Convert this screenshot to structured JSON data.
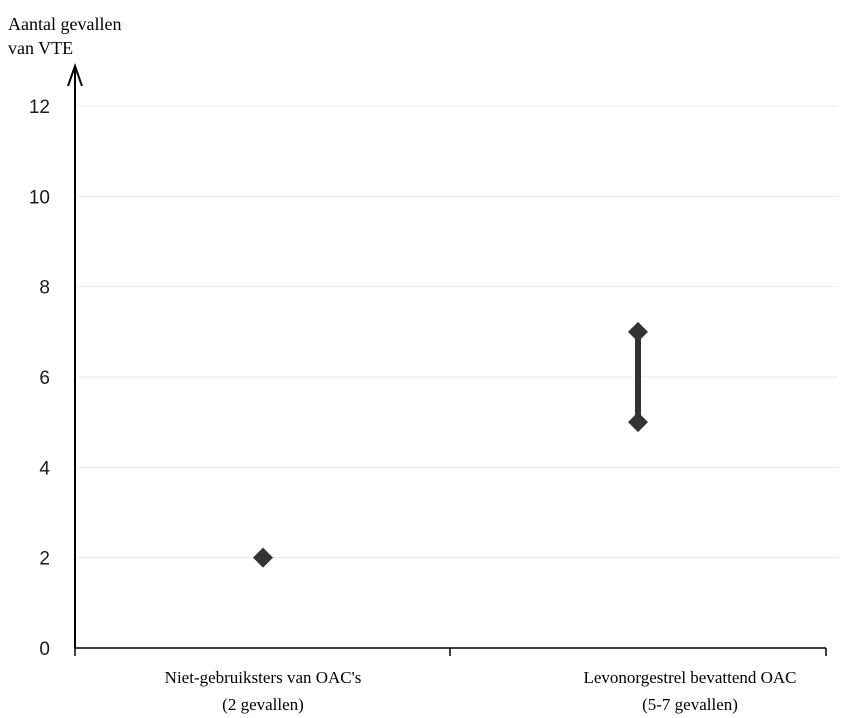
{
  "chart_data": {
    "type": "scatter",
    "ylabel_lines": [
      "Aantal gevallen",
      "van VTE"
    ],
    "categories": [
      {
        "lines": [
          "Niet-gebruiksters van OAC's",
          "(2 gevallen)"
        ]
      },
      {
        "lines": [
          "Levonorgestrel bevattend OAC",
          "(5-7 gevallen)"
        ]
      }
    ],
    "points": [
      {
        "category": 0,
        "low": 2,
        "high": 2
      },
      {
        "category": 1,
        "low": 5,
        "high": 7
      }
    ],
    "yticks": [
      "0",
      "2",
      "4",
      "6",
      "8",
      "10",
      "12"
    ],
    "ylim": [
      0,
      12
    ],
    "grid": true,
    "colors": {
      "marker": "#333333",
      "axis": "#000000",
      "grid": "#e8e8e8"
    }
  }
}
